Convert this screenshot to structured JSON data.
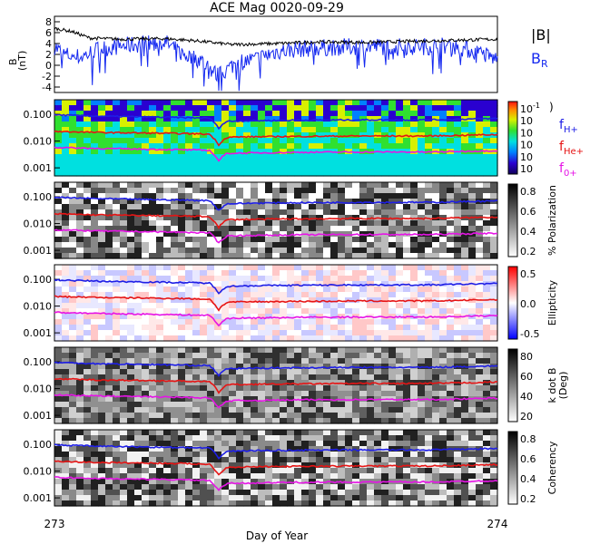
{
  "title": "ACE Mag 0020-09-29",
  "xlabel": "Day of Year",
  "x_ticks": [
    "273",
    "274"
  ],
  "colors": {
    "magnitude": "#000000",
    "br": "#1428f0",
    "h": "#1e1ee6",
    "he": "#e61414",
    "o": "#e614e6"
  },
  "mag_panel": {
    "ylabel_top": "B",
    "ylabel_unit": "(nT)",
    "y_ticks": [
      "8",
      "6",
      "4",
      "2",
      "0",
      "-2",
      "-4"
    ],
    "legend_magnitude": "|B|",
    "legend_br": "B",
    "legend_br_sub": "R"
  },
  "freq_ticks": [
    "0.100",
    "0.010",
    "0.001"
  ],
  "legend_ions": [
    {
      "base": "f",
      "sub": "H+"
    },
    {
      "base": "f",
      "sub": "He+"
    },
    {
      "base": "f",
      "sub": "0+"
    }
  ],
  "colorbars": [
    {
      "label": "",
      "ticks": [
        "10",
        "10",
        "10",
        "10",
        "10",
        "10"
      ],
      "exponents": [
        "-1",
        "",
        "",
        "",
        "",
        ""
      ],
      "extra": ")"
    },
    {
      "label": "% Polarization",
      "ticks": [
        "0.8",
        "0.6",
        "0.4",
        "0.2"
      ]
    },
    {
      "label": "Ellipticity",
      "ticks": [
        "0.5",
        "0.0",
        "-0.5"
      ]
    },
    {
      "label": "k dot B",
      "label2": "(Deg)",
      "ticks": [
        "80",
        "60",
        "40",
        "20"
      ]
    },
    {
      "label": "Coherency",
      "ticks": [
        "0.8",
        "0.6",
        "0.4",
        "0.2"
      ]
    }
  ],
  "chart_data": {
    "type": "line",
    "xlim": [
      273,
      274
    ],
    "mag_ylim": [
      -5,
      9
    ],
    "freq_ylim": [
      0.0005,
      0.35
    ],
    "freq_scale": "log",
    "series": [
      {
        "name": "|B|",
        "panel": "mag",
        "x": [
          273.0,
          273.04,
          273.08,
          273.15,
          273.25,
          273.32,
          273.4,
          273.5,
          273.6,
          273.7,
          273.8,
          273.9,
          274.0
        ],
        "values": [
          6.8,
          6.2,
          5.0,
          4.8,
          4.9,
          4.5,
          3.8,
          4.0,
          4.3,
          4.2,
          4.4,
          4.6,
          4.8
        ]
      },
      {
        "name": "B",
        "panel": "mag",
        "x": [
          273.0,
          273.02,
          273.06,
          273.1,
          273.15,
          273.2,
          273.25,
          273.29,
          273.33,
          273.37,
          273.41,
          273.45,
          273.5,
          273.55,
          273.6,
          273.7,
          273.8,
          273.9,
          273.97,
          274.0
        ],
        "values": [
          3.5,
          2.0,
          1.5,
          3.0,
          3.5,
          4.0,
          4.2,
          2.0,
          1.0,
          -2.0,
          0.5,
          1.0,
          2.5,
          3.0,
          3.2,
          3.5,
          3.4,
          3.6,
          2.0,
          1.0
        ]
      },
      {
        "name": "f",
        "panel": "freq",
        "x": [
          273.0,
          273.1,
          273.2,
          273.3,
          273.35,
          273.37,
          273.39,
          273.45,
          273.55,
          273.7,
          273.85,
          274.0
        ],
        "values": [
          0.095,
          0.085,
          0.08,
          0.075,
          0.072,
          0.03,
          0.055,
          0.058,
          0.06,
          0.062,
          0.062,
          0.07
        ]
      },
      {
        "name": "f",
        "panel": "freq",
        "x": [
          273.0,
          273.1,
          273.2,
          273.3,
          273.35,
          273.37,
          273.39,
          273.45,
          273.55,
          273.7,
          273.85,
          274.0
        ],
        "values": [
          0.023,
          0.021,
          0.02,
          0.019,
          0.018,
          0.007,
          0.014,
          0.0145,
          0.015,
          0.0155,
          0.0155,
          0.0175
        ]
      },
      {
        "name": "f",
        "panel": "freq",
        "x": [
          273.0,
          273.1,
          273.2,
          273.3,
          273.35,
          273.37,
          273.39,
          273.45,
          273.55,
          273.7,
          273.85,
          274.0
        ],
        "values": [
          0.0058,
          0.0053,
          0.005,
          0.0047,
          0.0045,
          0.0018,
          0.0035,
          0.0036,
          0.0038,
          0.0039,
          0.0039,
          0.0044
        ]
      }
    ]
  }
}
